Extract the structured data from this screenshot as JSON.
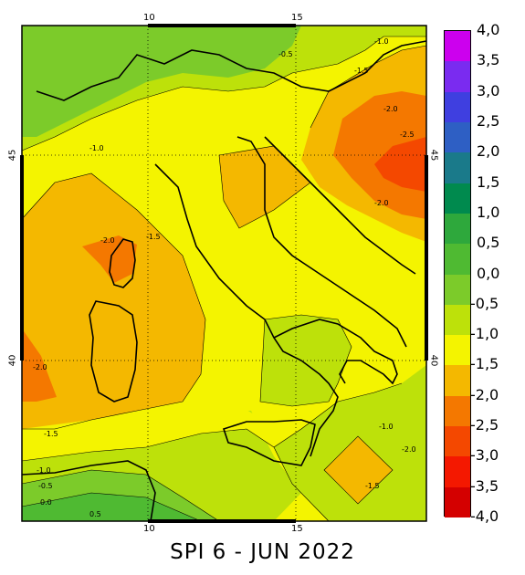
{
  "title": "SPI 6 - JUN 2022",
  "axes": {
    "lon_ticks": [
      "10",
      "15"
    ],
    "lat_ticks": [
      "45",
      "40"
    ]
  },
  "legend": {
    "labels": [
      "4,0",
      "3,5",
      "3,0",
      "2,5",
      "2,0",
      "1,5",
      "1,0",
      "0,5",
      "0,0",
      "-0,5",
      "-1,0",
      "-1,5",
      "-2,0",
      "-2,5",
      "-3,0",
      "-3,5",
      "-4,0"
    ],
    "colors": [
      "#cc00ee",
      "#7a2bf0",
      "#3f3fe0",
      "#2e5fc4",
      "#1a7a8a",
      "#008a4e",
      "#2ea83c",
      "#4fba32",
      "#7ccb2a",
      "#bde10a",
      "#f4f400",
      "#f4b800",
      "#f47800",
      "#f44800",
      "#f41800",
      "#d40000",
      "#900000"
    ]
  },
  "contour_labels": [
    "-0.5",
    "-1.0",
    "-1.5",
    "-2.0",
    "-1.0",
    "-2.0",
    "-1.5",
    "-2.0",
    "-2.5",
    "-2.0",
    "-1.0",
    "-1.5",
    "-1.0",
    "-0.5",
    "0.0",
    "0.5",
    "-2.0",
    "-1.5"
  ]
}
